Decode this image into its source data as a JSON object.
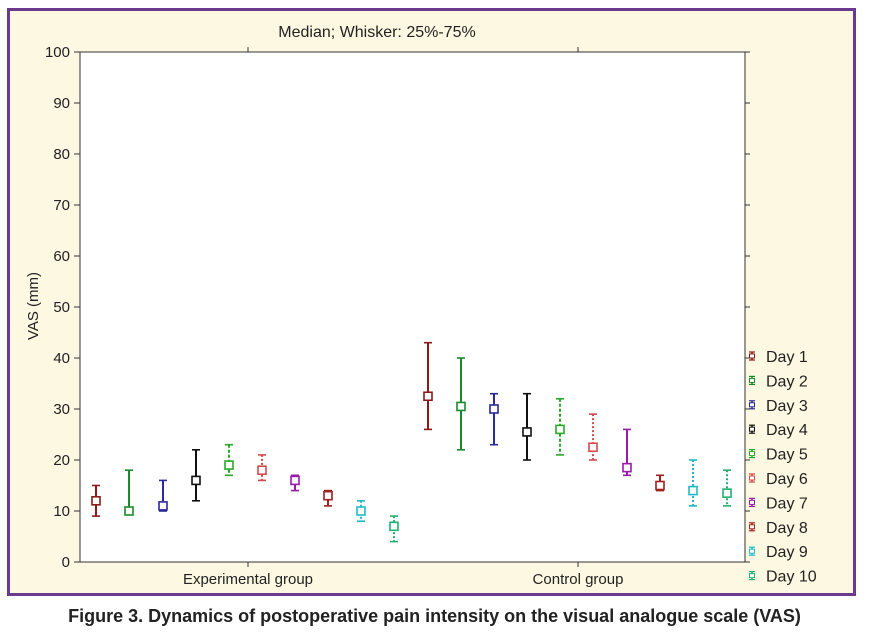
{
  "caption": "Figure 3. Dynamics of postoperative pain intensity on the visual analogue scale (VAS)",
  "chart_data": {
    "type": "box",
    "title": "Median; Whisker: 25%-75%",
    "ylabel": "VAS (mm)",
    "xlabel": "",
    "ylim": [
      0,
      100
    ],
    "yticks": [
      0,
      10,
      20,
      30,
      40,
      50,
      60,
      70,
      80,
      90,
      100
    ],
    "grid": true,
    "legend_position": "right",
    "groups": [
      "Experimental group",
      "Control group"
    ],
    "series": [
      {
        "name": "Day 1",
        "color": "#8b1a1a",
        "experimental": {
          "median": 12,
          "q1": 9,
          "q3": 15
        },
        "control": {
          "median": 32.5,
          "q1": 26,
          "q3": 43
        }
      },
      {
        "name": "Day 2",
        "color": "#1a8a2a",
        "experimental": {
          "median": 10,
          "q1": 9.5,
          "q3": 18
        },
        "control": {
          "median": 30.5,
          "q1": 22,
          "q3": 40
        }
      },
      {
        "name": "Day 3",
        "color": "#2a2a9a",
        "experimental": {
          "median": 11,
          "q1": 10,
          "q3": 16
        },
        "control": {
          "median": 30,
          "q1": 23,
          "q3": 33
        }
      },
      {
        "name": "Day 4",
        "color": "#111111",
        "experimental": {
          "median": 16,
          "q1": 12,
          "q3": 22
        },
        "control": {
          "median": 25.5,
          "q1": 20,
          "q3": 33
        }
      },
      {
        "name": "Day 5",
        "color": "#2aa82a",
        "experimental": {
          "median": 19,
          "q1": 17,
          "q3": 23
        },
        "control": {
          "median": 26,
          "q1": 21,
          "q3": 32
        }
      },
      {
        "name": "Day 6",
        "color": "#d24a4a",
        "experimental": {
          "median": 18,
          "q1": 16,
          "q3": 21
        },
        "control": {
          "median": 22.5,
          "q1": 20,
          "q3": 29
        }
      },
      {
        "name": "Day 7",
        "color": "#9a1aaa",
        "experimental": {
          "median": 16,
          "q1": 14,
          "q3": 17
        },
        "control": {
          "median": 18.5,
          "q1": 17,
          "q3": 26
        }
      },
      {
        "name": "Day 8",
        "color": "#a02020",
        "experimental": {
          "median": 13,
          "q1": 11,
          "q3": 14
        },
        "control": {
          "median": 15,
          "q1": 14,
          "q3": 17
        }
      },
      {
        "name": "Day 9",
        "color": "#22b8cc",
        "experimental": {
          "median": 10,
          "q1": 8,
          "q3": 12
        },
        "control": {
          "median": 14,
          "q1": 11,
          "q3": 20
        }
      },
      {
        "name": "Day 10",
        "color": "#22b070",
        "experimental": {
          "median": 7,
          "q1": 4,
          "q3": 9
        },
        "control": {
          "median": 13.5,
          "q1": 11,
          "q3": 18
        }
      }
    ]
  }
}
